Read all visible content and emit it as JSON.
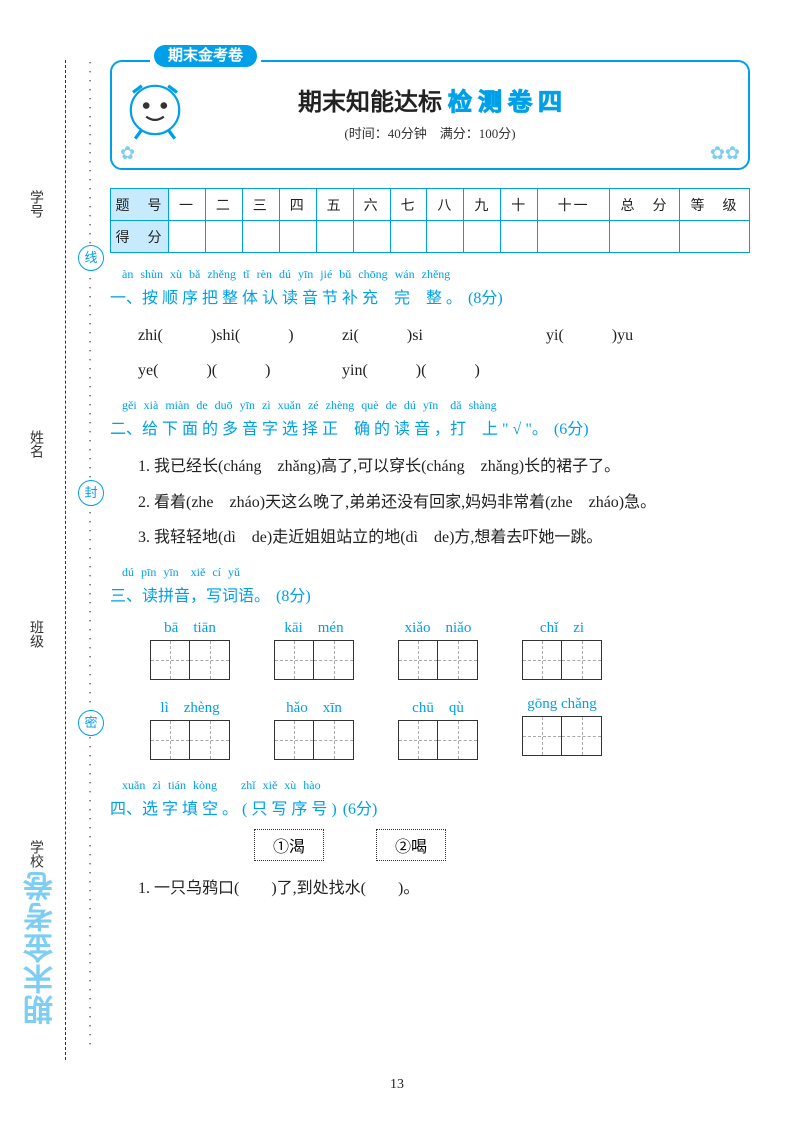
{
  "sidebar": {
    "labels": [
      "学号",
      "姓名",
      "班级",
      "学校"
    ],
    "circles": [
      "线",
      "封",
      "密"
    ]
  },
  "watermark": "期末金考卷",
  "header": {
    "ribbon": "期末金考卷",
    "title_black": "期末知能达标",
    "title_hl": "检 测 卷  四",
    "subtitle": "(时间：40分钟　满分：100分)"
  },
  "score_table": {
    "row1": [
      "题　号",
      "一",
      "二",
      "三",
      "四",
      "五",
      "六",
      "七",
      "八",
      "九",
      "十",
      "十一",
      "总　分",
      "等　级"
    ],
    "row2_label": "得　分"
  },
  "q1": {
    "pinyin": "àn shùn xù bǎ zhěng tǐ rèn dú yīn jié bǔ chōng wán zhěng",
    "title": "一、按 顺 序 把 整 体 认 读 音 节 补 充　完　整 。",
    "points": "(8分)",
    "row1": [
      {
        "pre": "zhi(",
        "gap": "　　　",
        "post": ")shi(",
        "gap2": "　　　",
        "post2": ")"
      },
      {
        "pre": "zi(",
        "gap": "　　　",
        "post": ")si"
      },
      {
        "pre": "yi(",
        "gap": "　　　",
        "post": ")yu"
      }
    ],
    "row2": [
      {
        "pre": "ye(",
        "gap": "　　　",
        "post": ")(",
        "gap2": "　　　",
        "post2": ")"
      },
      {
        "pre": "yin(",
        "gap": "　　　",
        "post": ")(",
        "gap2": "　　　",
        "post2": ")"
      }
    ]
  },
  "q2": {
    "pinyin": "gěi xià miàn de duō yīn zì xuǎn zé zhèng què de dú yīn　dǎ shàng",
    "title": "二、给 下 面 的 多 音 字 选 择 正　确 的 读 音 ，打　上 \" √ \"。",
    "points": "(6分)",
    "items": [
      "1. 我已经长(cháng　zhǎng)高了,可以穿长(cháng　zhǎng)长的裙子了。",
      "2. 看着(zhe　zháo)天这么晚了,弟弟还没有回家,妈妈非常着(zhe　zháo)急。",
      "3. 我轻轻地(dì　de)走近姐姐站立的地(dì　de)方,想着去吓她一跳。"
    ]
  },
  "q3": {
    "pinyin": "dú pīn yīn　xiě cí yǔ",
    "title": "三、读拼音，写词语。",
    "points": "(8分)",
    "rows": [
      [
        "bā　tiān",
        "kāi　mén",
        "xiǎo　niǎo",
        "chǐ　zi"
      ],
      [
        "lì　zhèng",
        "hǎo　xīn",
        "chū　qù",
        "gōng chǎng"
      ]
    ]
  },
  "q4": {
    "pinyin": "xuǎn zì tián kòng　　zhǐ xiě xù hào",
    "title": "四、选 字 填 空 。",
    "sub": "( 只 写 序 号 )",
    "points": "(6分)",
    "options": [
      "①渴",
      "②喝"
    ],
    "item": "1. 一只乌鸦口(　　)了,到处找水(　　)。"
  },
  "page_number": "13",
  "colors": {
    "accent": "#00a0e9",
    "light": "#c7eafc",
    "hl": "#7ecef4"
  }
}
